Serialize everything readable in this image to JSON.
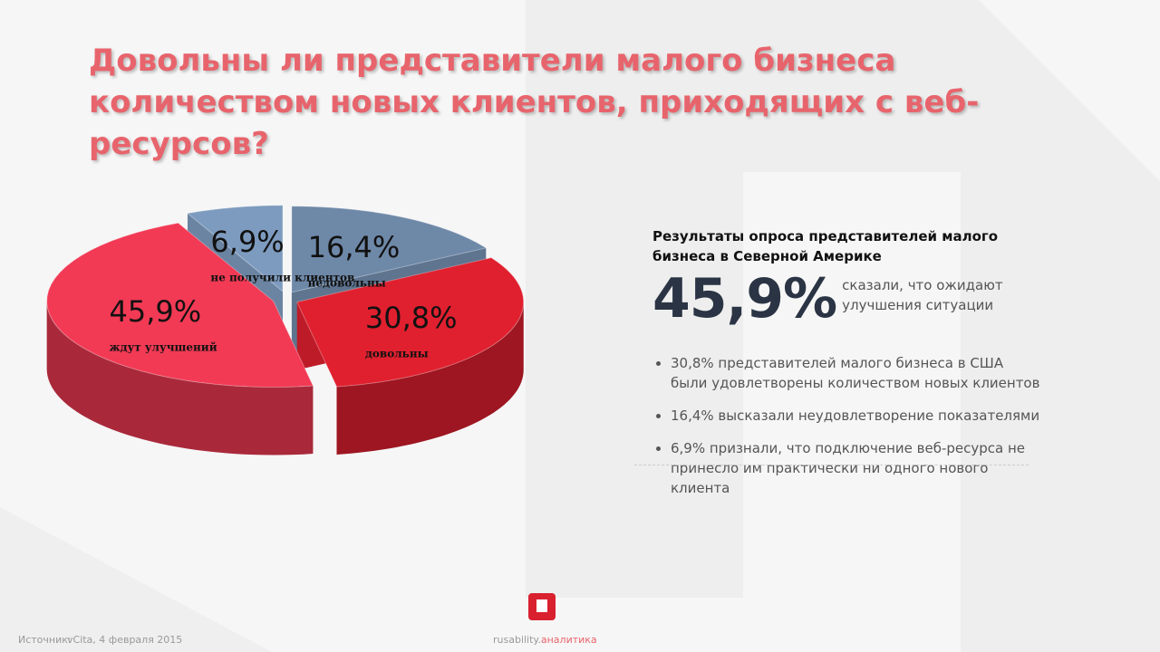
{
  "chart_data": {
    "type": "pie",
    "title": "Довольны ли представители малого бизнеса количеством новых клиентов, приходящих с веб-ресурсов?",
    "categories": [
      "недовольны",
      "довольны",
      "ждут улучшений",
      "не получили клиентов"
    ],
    "values": [
      16.4,
      30.8,
      45.9,
      6.9
    ],
    "value_labels": [
      "16,4%",
      "30,8%",
      "45,9%",
      "6,9%"
    ],
    "colors": [
      "#6e88a8",
      "#e0202f",
      "#f23a55",
      "#7d9bbf"
    ]
  },
  "panel": {
    "heading": "Результаты опроса представителей малого бизнеса в Северной Америке",
    "highlight": "45,9%",
    "highlight_text": "сказали, что ожидают улучшения ситуации",
    "bullets": [
      "30,8% представителей малого бизнеса в США были удовлетворены количеством новых клиентов",
      "16,4% высказали неудовлетворение показателями",
      "6,9% признали, что подключение веб-ресурса не принесло им практически ни одного нового клиента"
    ]
  },
  "footer": {
    "source_label": "Источник:",
    "source": "vCita, 4 февраля 2015",
    "brand": "rusability",
    "brand_suffix": "аналитика"
  }
}
